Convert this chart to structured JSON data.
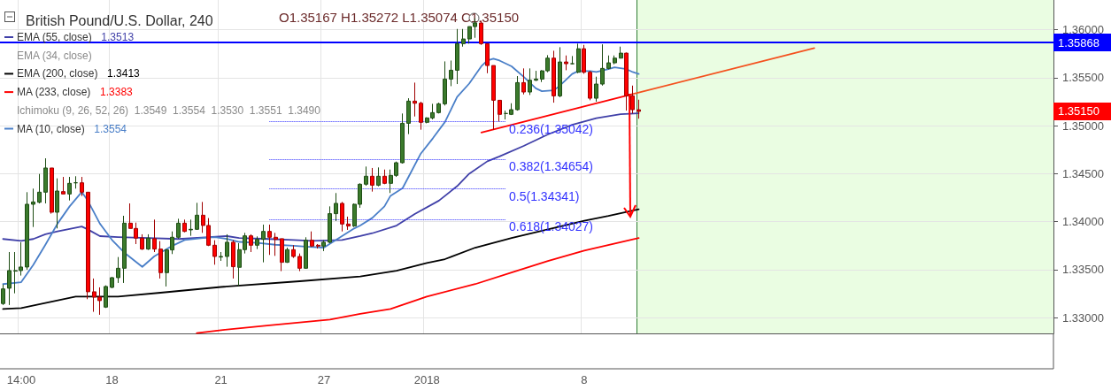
{
  "chart_data": {
    "type": "candlestick",
    "title": "British Pound/U.S. Dollar, 240",
    "categories": [
      null,
      null,
      null,
      "14:00",
      null,
      null,
      null,
      null,
      null,
      null,
      null,
      null,
      null,
      null,
      null,
      null,
      null,
      null,
      "18",
      null,
      null,
      null,
      null,
      null,
      null,
      null,
      null,
      null,
      null,
      null,
      null,
      null,
      null,
      null,
      null,
      null,
      "21",
      null,
      null,
      null,
      null,
      null,
      null,
      null,
      null,
      null,
      null,
      null,
      null,
      null,
      null,
      null,
      null,
      "27",
      null,
      null,
      null,
      null,
      null,
      null,
      null,
      null,
      null,
      null,
      null,
      null,
      null,
      null,
      null,
      null,
      "2018",
      null,
      null,
      null,
      null,
      null,
      null,
      null,
      null,
      null,
      null,
      null,
      null,
      null,
      null,
      null,
      null,
      null,
      null,
      null,
      null,
      null,
      null,
      null,
      null,
      null,
      "8",
      null,
      null,
      null,
      null,
      null,
      null,
      null,
      null,
      null,
      null,
      null,
      null,
      null,
      null,
      null,
      null,
      null,
      null,
      null,
      null,
      null,
      null,
      null,
      null,
      null,
      null,
      null,
      null,
      null,
      null,
      null,
      null,
      null,
      null,
      null,
      null,
      null,
      null,
      null,
      null,
      null,
      null,
      null,
      null,
      null,
      null,
      null,
      null,
      null,
      null,
      null,
      null,
      null,
      null,
      null,
      null,
      null,
      null,
      null,
      null,
      null,
      null,
      null,
      null,
      null,
      null,
      null,
      null,
      null,
      null,
      null,
      null,
      null,
      null,
      null,
      null,
      null
    ],
    "ohlc": [
      [
        1.33147,
        1.33346,
        1.33132,
        1.333
      ],
      [
        1.33307,
        1.33684,
        1.33132,
        1.33491
      ],
      [
        1.33485,
        1.33684,
        1.33254,
        1.33491
      ],
      [
        1.33491,
        1.33786,
        1.33439,
        1.33528
      ],
      [
        1.33528,
        1.34308,
        1.335,
        1.34182
      ],
      [
        1.34182,
        1.34345,
        1.33945,
        1.34206
      ],
      [
        1.34203,
        1.34498,
        1.34191,
        1.34308
      ],
      [
        1.34308,
        1.34661,
        1.34191,
        1.3456
      ],
      [
        1.3456,
        1.3456,
        1.34084,
        1.34099
      ],
      [
        1.34099,
        1.34452,
        1.3393,
        1.3432
      ],
      [
        1.34314,
        1.34467,
        1.34289,
        1.34289
      ],
      [
        1.34289,
        1.34467,
        1.34222,
        1.344
      ],
      [
        1.34406,
        1.34474,
        1.34345,
        1.34406
      ],
      [
        1.34406,
        1.34467,
        1.34268,
        1.34308
      ],
      [
        1.34308,
        1.34308,
        1.33193,
        1.3327
      ],
      [
        1.3327,
        1.33408,
        1.33061,
        1.33214
      ],
      [
        1.33214,
        1.33316,
        1.3303,
        1.33178
      ],
      [
        1.3311,
        1.33337,
        1.33101,
        1.33325
      ],
      [
        1.33316,
        1.33423,
        1.33307,
        1.33417
      ],
      [
        1.33417,
        1.33632,
        1.33362,
        1.33515
      ],
      [
        1.33515,
        1.34062,
        1.33362,
        1.33985
      ],
      [
        1.33985,
        1.34191,
        1.3393,
        1.3393
      ],
      [
        1.3393,
        1.33991,
        1.33767,
        1.33829
      ],
      [
        1.33829,
        1.33869,
        1.33706,
        1.33715
      ],
      [
        1.33715,
        1.33869,
        1.33706,
        1.33829
      ],
      [
        1.33823,
        1.34022,
        1.33684,
        1.33715
      ],
      [
        1.33715,
        1.33798,
        1.33408,
        1.33469
      ],
      [
        1.33469,
        1.33715,
        1.33325,
        1.33706
      ],
      [
        1.33706,
        1.33899,
        1.33663,
        1.33838
      ],
      [
        1.33838,
        1.34031,
        1.33823,
        1.33985
      ],
      [
        1.33985,
        1.34022,
        1.3389,
        1.33899
      ],
      [
        1.33915,
        1.34022,
        1.33853,
        1.33921
      ],
      [
        1.33921,
        1.34197,
        1.33915,
        1.34068
      ],
      [
        1.34068,
        1.34206,
        1.33884,
        1.33961
      ],
      [
        1.33961,
        1.34038,
        1.33746,
        1.33755
      ],
      [
        1.33755,
        1.33807,
        1.33552,
        1.33638
      ],
      [
        1.33632,
        1.33684,
        1.33592,
        1.33638
      ],
      [
        1.33638,
        1.33869,
        1.33531,
        1.33786
      ],
      [
        1.33786,
        1.33807,
        1.33408,
        1.33531
      ],
      [
        1.33525,
        1.33776,
        1.33331,
        1.33709
      ],
      [
        1.33709,
        1.33884,
        1.33669,
        1.33853
      ],
      [
        1.33853,
        1.33869,
        1.33684,
        1.33755
      ],
      [
        1.33755,
        1.33847,
        1.33715,
        1.33816
      ],
      [
        1.33816,
        1.3397,
        1.33577,
        1.33899
      ],
      [
        1.33899,
        1.3397,
        1.33654,
        1.33838
      ],
      [
        1.33838,
        1.33884,
        1.33644,
        1.33816
      ],
      [
        1.33823,
        1.33823,
        1.33485,
        1.33577
      ],
      [
        1.33577,
        1.3373,
        1.33571,
        1.33709
      ],
      [
        1.33709,
        1.33755,
        1.33623,
        1.33638
      ],
      [
        1.33638,
        1.33669,
        1.33485,
        1.33515
      ],
      [
        1.33515,
        1.33838,
        1.33509,
        1.33807
      ],
      [
        1.33807,
        1.33899,
        1.33737,
        1.33746
      ],
      [
        1.33755,
        1.33767,
        1.33721,
        1.33746
      ],
      [
        1.33746,
        1.33807,
        1.33694,
        1.33786
      ],
      [
        1.33786,
        1.3416,
        1.33776,
        1.34084
      ],
      [
        1.34084,
        1.34299,
        1.34007,
        1.34191
      ],
      [
        1.34191,
        1.34206,
        1.33899,
        1.33976
      ],
      [
        1.33976,
        1.34053,
        1.33915,
        1.33955
      ],
      [
        1.33955,
        1.34191,
        1.33945,
        1.34182
      ],
      [
        1.34182,
        1.344,
        1.34145,
        1.34391
      ],
      [
        1.34391,
        1.34575,
        1.34375,
        1.34474
      ],
      [
        1.34474,
        1.3456,
        1.34314,
        1.34381
      ],
      [
        1.34381,
        1.34566,
        1.34369,
        1.34474
      ],
      [
        1.34474,
        1.34544,
        1.34391,
        1.344
      ],
      [
        1.344,
        1.34544,
        1.34299,
        1.34483
      ],
      [
        1.34483,
        1.34627,
        1.34467,
        1.34615
      ],
      [
        1.34615,
        1.35128,
        1.34606,
        1.35026
      ],
      [
        1.35026,
        1.35287,
        1.34913,
        1.35257
      ],
      [
        1.35257,
        1.3545,
        1.35097,
        1.35235
      ],
      [
        1.35235,
        1.35251,
        1.34959,
        1.35036
      ],
      [
        1.35036,
        1.35088,
        1.35026,
        1.35082
      ],
      [
        1.35082,
        1.35229,
        1.35066,
        1.35137
      ],
      [
        1.35137,
        1.35241,
        1.35128,
        1.35229
      ],
      [
        1.35229,
        1.35671,
        1.35211,
        1.35487
      ],
      [
        1.35487,
        1.3568,
        1.35413,
        1.35579
      ],
      [
        1.35579,
        1.36009,
        1.35435,
        1.35856
      ],
      [
        1.35856,
        1.36009,
        1.35825,
        1.35905
      ],
      [
        1.35905,
        1.36034,
        1.35856,
        1.36034
      ],
      [
        1.36034,
        1.3612,
        1.35917,
        1.36071
      ],
      [
        1.36071,
        1.36095,
        1.35843,
        1.35856
      ],
      [
        1.35856,
        1.35856,
        1.35548,
        1.35628
      ],
      [
        1.35628,
        1.35628,
        1.34959,
        1.35266
      ],
      [
        1.35266,
        1.35266,
        1.35045,
        1.35119
      ],
      [
        1.35128,
        1.35158,
        1.35066,
        1.35128
      ],
      [
        1.35119,
        1.35235,
        1.35112,
        1.35168
      ],
      [
        1.35168,
        1.35518,
        1.35158,
        1.3545
      ],
      [
        1.3545,
        1.35598,
        1.35327,
        1.35352
      ],
      [
        1.35352,
        1.35598,
        1.35321,
        1.35475
      ],
      [
        1.35475,
        1.35573,
        1.35466,
        1.35487
      ],
      [
        1.35487,
        1.35579,
        1.35456,
        1.35573
      ],
      [
        1.35573,
        1.35736,
        1.35558,
        1.35705
      ],
      [
        1.35705,
        1.35782,
        1.35241,
        1.35312
      ],
      [
        1.35312,
        1.35819,
        1.35297,
        1.35665
      ],
      [
        1.35665,
        1.35733,
        1.35579,
        1.35647
      ],
      [
        1.35647,
        1.35727,
        1.35641,
        1.35647
      ],
      [
        1.35558,
        1.35856,
        1.35548,
        1.35803
      ],
      [
        1.35803,
        1.35843,
        1.35542,
        1.35558
      ],
      [
        1.35558,
        1.35573,
        1.35266,
        1.35287
      ],
      [
        1.35287,
        1.35512,
        1.35251,
        1.35435
      ],
      [
        1.35435,
        1.35849,
        1.35419,
        1.35598
      ],
      [
        1.35598,
        1.35733,
        1.35588,
        1.35656
      ],
      [
        1.35656,
        1.35733,
        1.35641,
        1.35705
      ],
      [
        1.35705,
        1.35825,
        1.35702,
        1.35757
      ],
      [
        1.35757,
        1.35763,
        1.35158,
        1.35312
      ],
      [
        1.35312,
        1.35419,
        1.35128,
        1.35168
      ],
      [
        1.35167,
        1.35272,
        1.35074,
        1.3515
      ],
      null,
      null,
      null,
      null,
      null,
      null,
      null,
      null,
      null,
      null,
      null,
      null,
      null,
      null,
      null,
      null,
      null,
      null,
      null,
      null,
      null,
      null,
      null,
      null,
      null,
      null,
      null,
      null,
      null,
      null,
      null,
      null,
      null,
      null,
      null,
      null,
      null,
      null,
      null,
      null,
      null,
      null,
      null,
      null,
      null,
      null,
      null,
      null,
      null,
      null,
      null,
      null,
      null,
      null,
      null,
      null,
      null,
      null,
      null,
      null,
      null,
      null,
      null,
      null,
      null,
      null,
      null,
      null
    ],
    "series": [
      {
        "type": "line",
        "name": "EMA (55, close)",
        "color": "#4040a8",
        "values": [
          1.3382,
          null,
          null,
          1.338,
          null,
          1.3382,
          null,
          1.3387,
          null,
          1.339,
          null,
          null,
          null,
          1.3395,
          1.3392,
          null,
          1.3385,
          null,
          null,
          1.3384,
          null,
          null,
          null,
          null,
          1.3383,
          null,
          null,
          null,
          null,
          1.3382,
          null,
          null,
          null,
          null,
          1.3384,
          null,
          null,
          1.3385,
          null,
          1.3383,
          null,
          null,
          null,
          null,
          1.3382,
          null,
          null,
          null,
          1.3381,
          null,
          null,
          1.338,
          null,
          null,
          null,
          null,
          1.3381,
          null,
          null,
          1.3385,
          null,
          1.3388,
          null,
          null,
          null,
          1.3396,
          null,
          null,
          1.3408,
          null,
          null,
          null,
          1.3422,
          null,
          null,
          1.3437,
          null,
          1.345,
          null,
          null,
          1.3463,
          null,
          1.3468,
          null,
          null,
          null,
          1.3479,
          null,
          null,
          null,
          1.3491,
          null,
          null,
          null,
          1.3501,
          null,
          null,
          null,
          1.3508,
          null,
          null,
          null,
          1.3512,
          null,
          null,
          1.3513,
          null,
          null,
          null,
          null,
          null,
          null,
          null,
          null,
          null,
          null,
          null,
          null,
          null,
          null,
          null,
          null,
          null,
          null,
          null,
          null,
          null,
          null,
          null,
          null,
          null,
          null,
          null,
          null,
          null,
          null,
          null,
          null,
          null,
          null,
          null,
          null,
          null,
          null,
          null,
          null,
          null,
          null,
          null,
          null,
          null,
          null,
          null,
          null,
          null,
          null,
          null,
          null,
          null,
          null,
          null,
          null,
          null,
          null,
          null,
          null,
          null,
          null,
          null,
          null,
          null,
          null,
          null,
          null
        ]
      },
      {
        "type": "line",
        "name": "EMA (200, close)",
        "color": "#000000",
        "values": [
          1.3309,
          null,
          null,
          1.331,
          null,
          null,
          null,
          null,
          null,
          null,
          null,
          null,
          1.3322,
          null,
          null,
          null,
          null,
          null,
          null,
          1.3322,
          null,
          null,
          null,
          null,
          null,
          null,
          1.3326,
          null,
          null,
          null,
          null,
          null,
          null,
          null,
          null,
          null,
          1.3332,
          null,
          null,
          null,
          null,
          null,
          null,
          null,
          null,
          null,
          null,
          null,
          null,
          1.3338,
          null,
          null,
          null,
          null,
          null,
          null,
          null,
          null,
          null,
          1.3343,
          null,
          null,
          null,
          null,
          null,
          1.3349,
          null,
          null,
          null,
          null,
          1.3357,
          null,
          null,
          1.3361,
          null,
          null,
          null,
          null,
          1.3373,
          null,
          null,
          null,
          null,
          null,
          1.3383,
          null,
          null,
          null,
          null,
          null,
          1.3392,
          null,
          null,
          null,
          null,
          null,
          1.3401,
          null,
          null,
          null,
          1.3406,
          null,
          null,
          null,
          null,
          1.3413,
          null,
          null,
          null,
          null,
          null,
          null,
          null,
          null,
          null,
          null,
          null,
          null,
          null,
          null,
          null,
          null,
          null,
          null,
          null,
          null,
          null,
          null,
          null,
          null,
          null,
          null,
          null,
          null,
          null,
          null,
          null,
          null,
          null,
          null,
          null,
          null,
          null,
          null,
          null,
          null,
          null,
          null,
          null,
          null,
          null,
          null,
          null,
          null,
          null,
          null,
          null,
          null,
          null,
          null,
          null,
          null,
          null,
          null,
          null,
          null,
          null,
          null,
          null,
          null,
          null,
          null,
          null,
          null
        ]
      },
      {
        "type": "line",
        "name": "MA (233, close)",
        "color": "#ff0000",
        "values": [
          null,
          null,
          null,
          null,
          null,
          null,
          null,
          null,
          null,
          null,
          null,
          null,
          null,
          null,
          null,
          null,
          null,
          null,
          null,
          null,
          null,
          null,
          null,
          null,
          null,
          null,
          null,
          null,
          null,
          null,
          null,
          null,
          1.3284,
          null,
          null,
          null,
          1.3287,
          null,
          null,
          null,
          null,
          null,
          null,
          null,
          1.3292,
          null,
          null,
          null,
          null,
          null,
          null,
          null,
          null,
          null,
          1.3298,
          null,
          null,
          null,
          null,
          1.3304,
          null,
          null,
          null,
          null,
          1.3309,
          null,
          null,
          null,
          null,
          null,
          1.3322,
          null,
          null,
          null,
          null,
          null,
          null,
          null,
          1.3335,
          null,
          null,
          null,
          null,
          null,
          1.3347,
          null,
          null,
          null,
          null,
          null,
          1.3359,
          null,
          null,
          null,
          null,
          null,
          1.337,
          null,
          null,
          null,
          null,
          null,
          null,
          null,
          null,
          1.3383,
          null,
          null,
          null,
          null,
          null,
          null,
          null,
          null,
          null,
          null,
          null,
          null,
          null,
          null,
          null,
          null,
          null,
          null,
          null,
          null,
          null,
          null,
          null,
          null,
          null,
          null,
          null,
          null,
          null,
          null,
          null,
          null,
          null,
          null,
          null,
          null,
          null,
          null,
          null,
          null,
          null,
          null,
          null,
          null,
          null,
          null,
          null,
          null,
          null,
          null,
          null,
          null,
          null,
          null,
          null,
          null,
          null,
          null,
          null,
          null,
          null,
          null,
          null,
          null,
          null,
          null,
          null,
          null
        ]
      },
      {
        "type": "line",
        "name": "MA (10, close)",
        "color": "#4a7fc8",
        "values": [
          1.3335,
          null,
          null,
          1.3337,
          null,
          1.3355,
          null,
          1.3376,
          null,
          1.3398,
          null,
          1.3416,
          null,
          1.3431,
          1.3422,
          null,
          1.3398,
          null,
          1.3381,
          null,
          1.3368,
          null,
          null,
          1.3353,
          null,
          1.3364,
          null,
          null,
          1.3375,
          null,
          1.3381,
          null,
          null,
          1.3383,
          null,
          1.3384,
          null,
          1.3382,
          null,
          1.3379,
          null,
          null,
          1.3378,
          null,
          null,
          1.3376,
          null,
          null,
          1.3375,
          null,
          1.3374,
          null,
          null,
          1.3373,
          null,
          1.3381,
          null,
          null,
          1.3393,
          1.3396,
          null,
          1.3404,
          null,
          1.3416,
          1.3427,
          null,
          1.3435,
          1.3447,
          null,
          1.3471,
          null,
          1.3487,
          null,
          1.3504,
          null,
          1.353,
          null,
          1.3544,
          null,
          1.3562,
          1.3568,
          1.357,
          1.3568,
          null,
          1.3562,
          null,
          1.3551,
          null,
          1.3539,
          1.3536,
          null,
          1.3537,
          1.3542,
          null,
          1.3554,
          1.3557,
          null,
          1.3557,
          1.3556,
          null,
          1.3559,
          1.3561,
          null,
          1.3559,
          1.3556,
          1.3554,
          null,
          null,
          null,
          null,
          null,
          null,
          null,
          null,
          null,
          null,
          null,
          null,
          null,
          null,
          null,
          null,
          null,
          null,
          null,
          null,
          null,
          null,
          null,
          null,
          null,
          null,
          null,
          null,
          null,
          null,
          null,
          null,
          null,
          null,
          null,
          null,
          null,
          null,
          null,
          null,
          null,
          null,
          null,
          null,
          null,
          null,
          null,
          null,
          null,
          null,
          null,
          null,
          null,
          null,
          null,
          null,
          null,
          null,
          null,
          null,
          null,
          null,
          null,
          null,
          null,
          null,
          null,
          null
        ]
      },
      {
        "type": "line",
        "color": "#ff0000",
        "values": [
          null,
          null,
          null,
          null,
          null,
          null,
          null,
          null,
          null,
          null,
          null,
          null,
          null,
          null,
          null,
          null,
          null,
          null,
          null,
          null,
          null,
          null,
          null,
          null,
          null,
          null,
          null,
          null,
          null,
          null,
          null,
          null,
          null,
          null,
          null,
          null,
          null,
          null,
          null,
          null,
          null,
          null,
          null,
          null,
          null,
          null,
          null,
          null,
          null,
          null,
          null,
          null,
          null,
          null,
          null,
          null,
          null,
          null,
          null,
          null,
          null,
          null,
          null,
          null,
          null,
          null,
          null,
          null,
          null,
          null,
          null,
          null,
          null,
          null,
          null,
          null,
          null,
          null,
          null,
          1.3493,
          null,
          null,
          null,
          null,
          null,
          null,
          null,
          null,
          null,
          null,
          null,
          null,
          null,
          null,
          null,
          null,
          null,
          null,
          null,
          null,
          null,
          null,
          null,
          null,
          1.3533,
          null,
          null,
          null,
          null,
          null,
          null,
          null,
          null,
          null,
          null,
          null,
          null,
          null,
          null,
          null,
          null,
          null,
          null,
          null,
          null,
          null,
          null,
          null,
          null,
          null,
          null,
          null,
          null,
          null,
          null,
          null,
          null,
          null,
          null,
          null,
          null,
          null,
          null,
          null,
          null,
          null,
          null,
          null,
          null,
          null,
          null,
          null,
          null,
          null,
          null,
          null,
          null,
          null,
          null,
          null,
          null,
          null,
          null,
          null,
          null,
          null,
          null,
          null,
          null,
          null,
          null,
          null,
          null,
          null
        ]
      },
      {
        "type": "line",
        "color": "#f4511e",
        "values": [
          null,
          null,
          null,
          null,
          null,
          null,
          null,
          null,
          null,
          null,
          null,
          null,
          null,
          null,
          null,
          null,
          null,
          null,
          null,
          null,
          null,
          null,
          null,
          null,
          null,
          null,
          null,
          null,
          null,
          null,
          null,
          null,
          null,
          null,
          null,
          null,
          null,
          null,
          null,
          null,
          null,
          null,
          null,
          null,
          null,
          null,
          null,
          null,
          null,
          null,
          null,
          null,
          null,
          null,
          null,
          null,
          null,
          null,
          null,
          null,
          null,
          null,
          null,
          null,
          null,
          null,
          null,
          null,
          null,
          null,
          null,
          null,
          null,
          null,
          null,
          null,
          null,
          null,
          null,
          null,
          null,
          null,
          null,
          null,
          null,
          null,
          null,
          null,
          null,
          null,
          null,
          null,
          null,
          null,
          null,
          null,
          null,
          null,
          null,
          null,
          null,
          null,
          null,
          null,
          1.3533,
          null,
          null,
          null,
          null,
          null,
          null,
          null,
          null,
          null,
          null,
          null,
          null,
          null,
          null,
          null,
          null,
          null,
          null,
          null,
          null,
          null,
          null,
          null,
          null,
          null,
          null,
          null,
          null,
          null,
          1.3581,
          null,
          null,
          null,
          null,
          null,
          null,
          null,
          null,
          null,
          null,
          null,
          null,
          null,
          null,
          null,
          null,
          null,
          null,
          null,
          null,
          null,
          null,
          null,
          null,
          null,
          null,
          null,
          null,
          null,
          null,
          null,
          null,
          null,
          null,
          null,
          null,
          null,
          null,
          null
        ]
      }
    ],
    "ylim": [
      1.32836,
      1.36311
    ],
    "yticks": [
      {
        "value": 1.33,
        "label": "1.33000"
      },
      {
        "value": 1.335,
        "label": "1.33500"
      },
      {
        "value": 1.34,
        "label": "1.34000"
      },
      {
        "value": 1.345,
        "label": "1.34500"
      },
      {
        "value": 1.35,
        "label": "1.35000"
      },
      {
        "value": 1.355,
        "label": "1.35500"
      },
      {
        "value": 1.36,
        "label": "1.36000"
      }
    ],
    "ref_lines": [
      {
        "axis": "y",
        "value": 1.35868,
        "label": "1.35868",
        "color": "#0000ff",
        "line_style": "solid"
      },
      {
        "axis": "y",
        "value": 1.35042,
        "label": "0.236(1.35042)",
        "color": "#3333ff",
        "line_style": "dotted"
      },
      {
        "axis": "y",
        "value": 1.34654,
        "label": "0.382(1.34654)",
        "color": "#3333ff",
        "line_style": "dotted"
      },
      {
        "axis": "y",
        "value": 1.34341,
        "label": "0.5(1.34341)",
        "color": "#3333ff",
        "line_style": "dotted"
      },
      {
        "axis": "y",
        "value": 1.34027,
        "label": "0.618(1.34027)",
        "color": "#3333ff",
        "line_style": "dotted"
      }
    ],
    "annotations": [
      "O1.35167 H1.35272 L1.35074 C1.35150",
      "EMA (34, close)",
      "Ichimoku (9, 26, 52, 26)  1.3549  1.3554  1.3530  1.3551  1.3490",
      "1.3513",
      "1.3413",
      "1.3383",
      "1.3554",
      "1.35150"
    ],
    "grid": true,
    "legend": "top left"
  }
}
